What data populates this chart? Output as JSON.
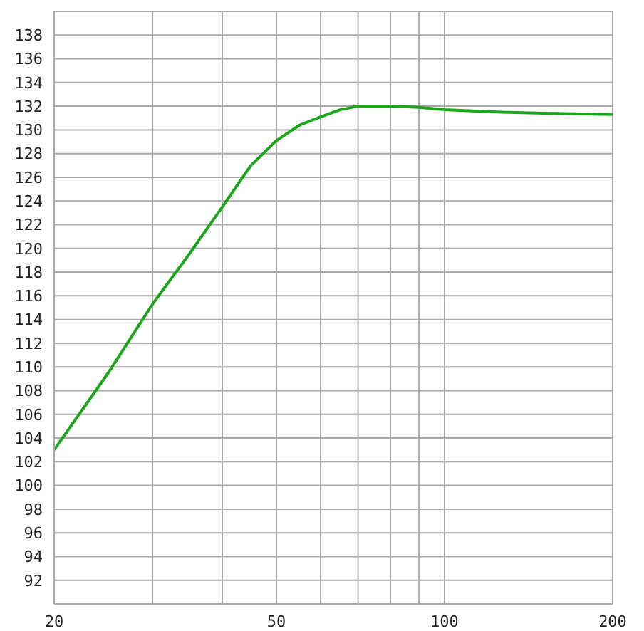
{
  "chart_data": {
    "type": "line",
    "log": "x",
    "grid": true,
    "marker": "none",
    "line_style": "solid",
    "legend": false,
    "xlim": [
      20,
      200
    ],
    "xticks": [
      20,
      {
        "value": 30,
        "label": null
      },
      {
        "value": 40,
        "label": null
      },
      50,
      {
        "value": 60,
        "label": null
      },
      {
        "value": 70,
        "label": null
      },
      {
        "value": 80,
        "label": null
      },
      {
        "value": 90,
        "label": null
      },
      100,
      200
    ],
    "ylim": [
      90,
      140
    ],
    "yticks": [
      92,
      94,
      96,
      98,
      100,
      102,
      104,
      106,
      108,
      110,
      112,
      114,
      116,
      118,
      120,
      122,
      124,
      126,
      128,
      130,
      132,
      134,
      136,
      138,
      {
        "value": 140,
        "label": null
      }
    ],
    "x": [
      20,
      25,
      30,
      35,
      40,
      45,
      50,
      55,
      60,
      65,
      70,
      75,
      80,
      90,
      100,
      126,
      151,
      200
    ],
    "series": [
      {
        "color": "#1aa51a",
        "values": [
          103.0,
          109.5,
          115.3,
          119.6,
          123.5,
          127.0,
          129.1,
          130.4,
          131.1,
          131.7,
          132.0,
          132.0,
          132.0,
          131.9,
          131.7,
          131.5,
          131.4,
          131.3
        ]
      }
    ]
  }
}
